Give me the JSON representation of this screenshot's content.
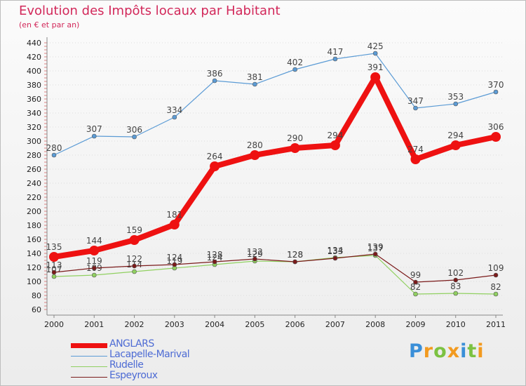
{
  "chart_data": {
    "type": "line",
    "title": "Evolution des Impôts locaux par Habitant",
    "subtitle": "(en € et par an)",
    "x": [
      "2000",
      "2001",
      "2002",
      "2003",
      "2004",
      "2005",
      "2006",
      "2007",
      "2008",
      "2009",
      "2010",
      "2011"
    ],
    "ylim": [
      60,
      440
    ],
    "yticks": [
      60,
      80,
      100,
      120,
      140,
      160,
      180,
      200,
      220,
      240,
      260,
      280,
      300,
      320,
      340,
      360,
      380,
      400,
      420,
      440
    ],
    "series": [
      {
        "name": "Lacapelle-Marival",
        "color": "#5b9bd5",
        "values": [
          280,
          307,
          306,
          334,
          386,
          381,
          402,
          417,
          425,
          347,
          353,
          370
        ]
      },
      {
        "name": "Rudelle",
        "color": "#90d060",
        "values": [
          107,
          109,
          114,
          119,
          124,
          129,
          128,
          134,
          137,
          82,
          83,
          82
        ]
      },
      {
        "name": "Espeyroux",
        "color": "#7a1a1a",
        "values": [
          113,
          119,
          122,
          124,
          128,
          132,
          128,
          133,
          139,
          99,
          102,
          109
        ]
      },
      {
        "name": "ANGLARS",
        "color": "#ee1111",
        "values": [
          135,
          144,
          159,
          181,
          264,
          280,
          290,
          294,
          391,
          274,
          294,
          306
        ]
      }
    ],
    "legend": [
      "ANGLARS",
      "Lacapelle-Marival",
      "Rudelle",
      "Espeyroux"
    ]
  },
  "brand": {
    "letters": [
      "P",
      "r",
      "o",
      "x",
      "i",
      "t",
      "i"
    ],
    "colors": [
      "#3a8fd8",
      "#f29a1f",
      "#7cc242",
      "#f29a1f",
      "#3a8fd8",
      "#7cc242",
      "#f29a1f"
    ]
  }
}
